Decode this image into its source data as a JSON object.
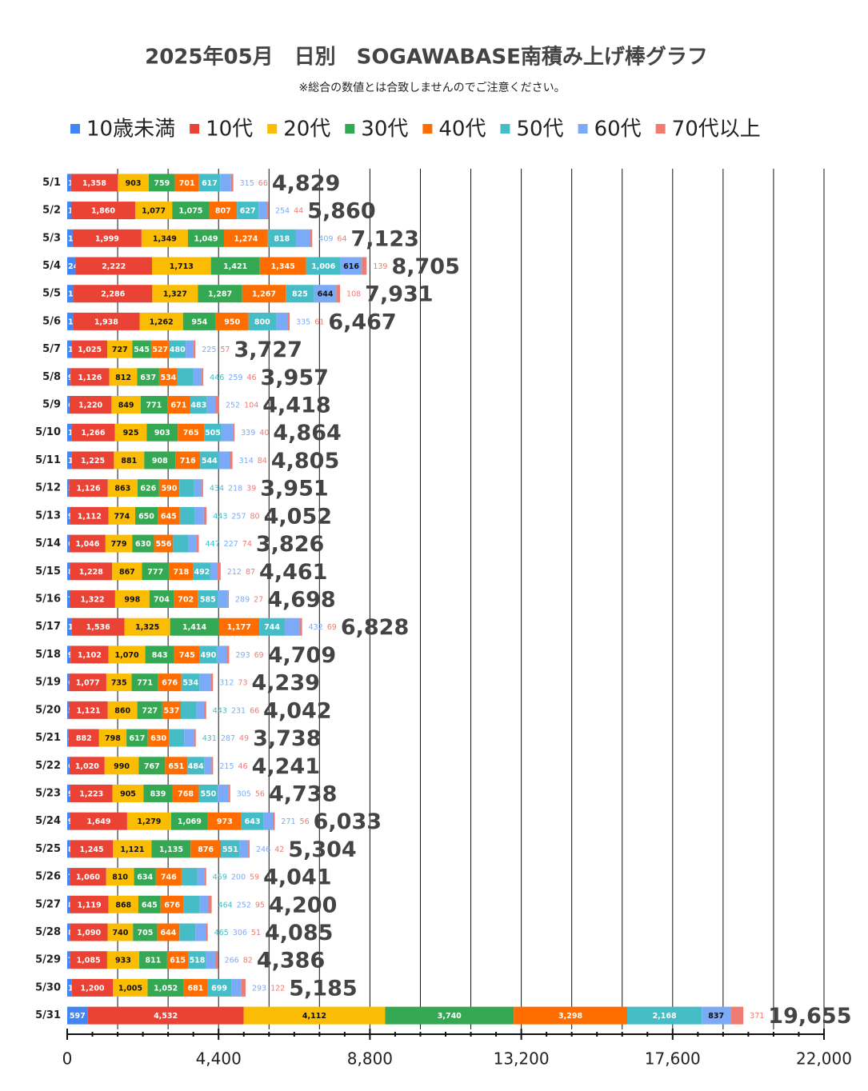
{
  "chart_data": {
    "type": "stacked_barh",
    "title": "2025年05月　日別　SOGAWABASE南積み上げ棒グラフ",
    "subtitle": "※総合の数値とは合致しませんのでご注意ください。",
    "categories": [
      "5/1",
      "5/2",
      "5/3",
      "5/4",
      "5/5",
      "5/6",
      "5/7",
      "5/8",
      "5/9",
      "5/10",
      "5/11",
      "5/12",
      "5/13",
      "5/14",
      "5/15",
      "5/16",
      "5/17",
      "5/18",
      "5/19",
      "5/20",
      "5/21",
      "5/22",
      "5/23",
      "5/24",
      "5/25",
      "5/26",
      "5/27",
      "5/28",
      "5/29",
      "5/30",
      "5/31"
    ],
    "series": [
      {
        "name": "10歳未満",
        "color": "#4285f4",
        "values": [
          110,
          116,
          161,
          243,
          187,
          167,
          141,
          97,
          68,
          121,
          133,
          55,
          91,
          67,
          80,
          71,
          131,
          97,
          61,
          57,
          44,
          68,
          92,
          93,
          88,
          73,
          81,
          84,
          76,
          133,
          597
        ]
      },
      {
        "name": "10代",
        "color": "#ea4335",
        "values": [
          1358,
          1860,
          1999,
          2222,
          2286,
          1938,
          1025,
          1126,
          1220,
          1266,
          1225,
          1126,
          1112,
          1046,
          1228,
          1322,
          1536,
          1102,
          1077,
          1121,
          882,
          1020,
          1223,
          1649,
          1245,
          1060,
          1119,
          1090,
          1085,
          1200,
          4532
        ],
        "value_labels": [
          "1,358",
          "1,860",
          "1,999",
          "2,222",
          "2,286",
          "1,938",
          "1,025",
          "1,126",
          "1,220",
          "1,266",
          "1,225",
          "1,126",
          "1,112",
          "1,046",
          "1,228",
          "1,322",
          "1,536",
          "1,102",
          "1,077",
          "1,121",
          "882",
          "1,020",
          "1,223",
          "1,649",
          "1,245",
          "1,060",
          "1,119",
          "1,090",
          "1,085",
          "1,200",
          "4,532"
        ]
      },
      {
        "name": "20代",
        "color": "#fbbc04",
        "values": [
          903,
          1077,
          1349,
          1713,
          1327,
          1262,
          727,
          812,
          849,
          925,
          881,
          863,
          774,
          779,
          867,
          998,
          1325,
          1070,
          735,
          860,
          798,
          990,
          905,
          1279,
          1121,
          810,
          868,
          740,
          933,
          1005,
          4112
        ],
        "value_labels": [
          "903",
          "1,077",
          "1,349",
          "1,713",
          "1,327",
          "1,262",
          "727",
          "812",
          "849",
          "925",
          "881",
          "863",
          "774",
          "779",
          "867",
          "998",
          "1,325",
          "1,070",
          "735",
          "860",
          "798",
          "990",
          "905",
          "1,279",
          "1,121",
          "810",
          "868",
          "740",
          "933",
          "1,005",
          "4,112"
        ]
      },
      {
        "name": "30代",
        "color": "#34a853",
        "values": [
          759,
          1075,
          1049,
          1421,
          1287,
          954,
          545,
          637,
          771,
          903,
          908,
          626,
          650,
          630,
          777,
          704,
          1414,
          843,
          771,
          727,
          617,
          767,
          839,
          1069,
          1135,
          634,
          645,
          705,
          811,
          1052,
          3740
        ],
        "value_labels": [
          "759",
          "1,075",
          "1,049",
          "1,421",
          "1,287",
          "954",
          "545",
          "637",
          "771",
          "903",
          "908",
          "626",
          "650",
          "630",
          "777",
          "704",
          "1,414",
          "843",
          "771",
          "727",
          "617",
          "767",
          "839",
          "1,069",
          "1,135",
          "634",
          "645",
          "705",
          "811",
          "1,052",
          "3,740"
        ]
      },
      {
        "name": "40代",
        "color": "#ff6d01",
        "values": [
          701,
          807,
          1274,
          1345,
          1267,
          950,
          527,
          534,
          671,
          765,
          716,
          590,
          645,
          556,
          718,
          702,
          1177,
          745,
          676,
          537,
          630,
          651,
          768,
          973,
          876,
          746,
          676,
          644,
          615,
          681,
          3298
        ],
        "value_labels": [
          "701",
          "807",
          "1,274",
          "1,345",
          "1,267",
          "950",
          "527",
          "534",
          "671",
          "765",
          "716",
          "590",
          "645",
          "556",
          "718",
          "702",
          "1,177",
          "745",
          "676",
          "537",
          "630",
          "651",
          "768",
          "973",
          "876",
          "746",
          "676",
          "644",
          "615",
          "681",
          "3,298"
        ]
      },
      {
        "name": "50代",
        "color": "#46bdc6",
        "values": [
          617,
          627,
          818,
          1006,
          825,
          800,
          480,
          446,
          483,
          505,
          544,
          434,
          443,
          447,
          492,
          585,
          744,
          490,
          534,
          443,
          431,
          484,
          550,
          643,
          551,
          459,
          464,
          465,
          518,
          699,
          2168
        ],
        "value_labels": [
          "617",
          "627",
          "818",
          "1,006",
          "825",
          "800",
          "480",
          "446",
          "483",
          "505",
          "544",
          "434",
          "443",
          "447",
          "492",
          "585",
          "744",
          "490",
          "534",
          "443",
          "431",
          "484",
          "550",
          "643",
          "551",
          "459",
          "464",
          "465",
          "518",
          "699",
          "2,168"
        ]
      },
      {
        "name": "60代",
        "color": "#7baaf7",
        "values": [
          315,
          254,
          409,
          616,
          644,
          335,
          225,
          259,
          252,
          339,
          314,
          218,
          257,
          227,
          212,
          289,
          432,
          293,
          312,
          231,
          287,
          215,
          305,
          271,
          246,
          200,
          252,
          306,
          266,
          293,
          837
        ]
      },
      {
        "name": "70代以上",
        "color": "#f07b72",
        "values": [
          66,
          44,
          64,
          139,
          108,
          61,
          57,
          46,
          104,
          40,
          84,
          39,
          80,
          74,
          87,
          27,
          69,
          69,
          73,
          66,
          49,
          46,
          56,
          56,
          42,
          59,
          95,
          51,
          82,
          122,
          371
        ]
      }
    ],
    "totals": [
      4829,
      5860,
      7123,
      8705,
      7931,
      6467,
      3727,
      3957,
      4418,
      4864,
      4805,
      3951,
      4052,
      3826,
      4461,
      4698,
      6828,
      4709,
      4239,
      4042,
      3738,
      4241,
      4738,
      6033,
      5304,
      4041,
      4200,
      4085,
      4386,
      5185,
      19655
    ],
    "total_labels": [
      "4,829",
      "5,860",
      "7,123",
      "8,705",
      "7,931",
      "6,467",
      "3,727",
      "3,957",
      "4,418",
      "4,864",
      "4,805",
      "3,951",
      "4,052",
      "3,826",
      "4,461",
      "4,698",
      "6,828",
      "4,709",
      "4,239",
      "4,042",
      "3,738",
      "4,241",
      "4,738",
      "6,033",
      "5,304",
      "4,041",
      "4,200",
      "4,085",
      "4,386",
      "5,185",
      "19,655"
    ],
    "xlim": [
      0,
      22000
    ],
    "xticks": [
      0,
      {
        "value": 4400,
        "label": "4,400"
      },
      {
        "value": 8800,
        "label": "8,800"
      },
      {
        "value": 13200,
        "label": "13,200"
      },
      {
        "value": 17600,
        "label": "17,600"
      },
      {
        "value": 22000,
        "label": "22,000"
      }
    ],
    "grid": true,
    "legend": "top"
  }
}
